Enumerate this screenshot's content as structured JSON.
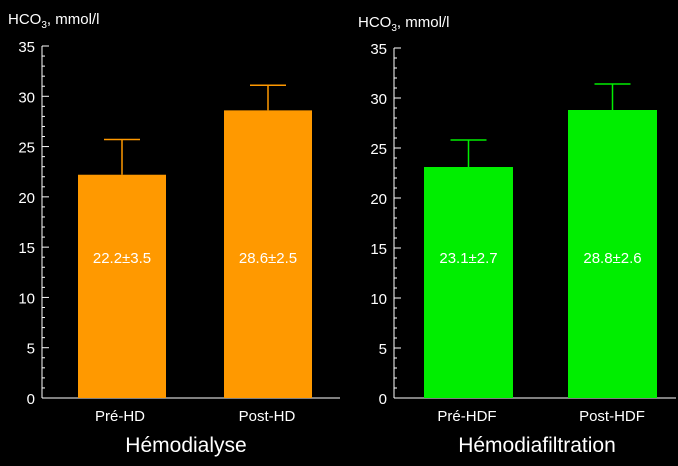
{
  "chart_data": [
    {
      "type": "bar",
      "ylabel_main": "HCO",
      "ylabel_sub": "3",
      "ylabel_unit": ", mmol/l",
      "ylim": [
        0,
        35
      ],
      "yticks": [
        "0",
        "5",
        "10",
        "15",
        "20",
        "25",
        "30",
        "35"
      ],
      "categories": [
        "Pré-HD",
        "Post-HD"
      ],
      "values": [
        22.2,
        28.6
      ],
      "errors": [
        3.5,
        2.5
      ],
      "labels": [
        "22.2±3.5",
        "28.6±2.5"
      ],
      "xlabel": "Hémodialyse",
      "bar_color": "#ff9900",
      "error_color": "#ff9900",
      "grid": false
    },
    {
      "type": "bar",
      "ylabel_main": "HCO",
      "ylabel_sub": "3",
      "ylabel_unit": ", mmol/l",
      "ylim": [
        0,
        35
      ],
      "yticks": [
        "0",
        "5",
        "10",
        "15",
        "20",
        "25",
        "30",
        "35"
      ],
      "categories": [
        "Pré-HDF",
        "Post-HDF"
      ],
      "values": [
        23.1,
        28.8
      ],
      "errors": [
        2.7,
        2.6
      ],
      "labels": [
        "23.1±2.7",
        "28.8±2.6"
      ],
      "xlabel": "Hémodiafiltration",
      "bar_color": "#00ee00",
      "error_color": "#00ee00",
      "grid": false
    }
  ]
}
